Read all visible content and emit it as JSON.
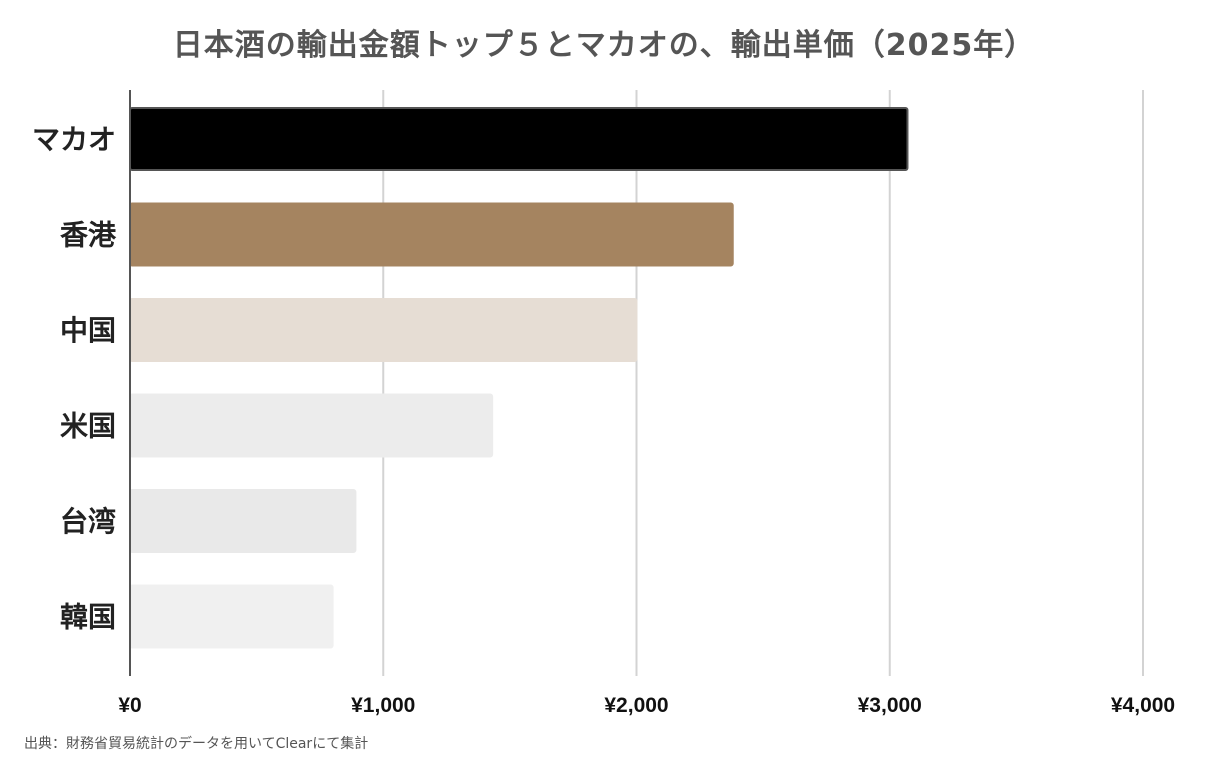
{
  "chart_data": {
    "type": "bar",
    "orientation": "horizontal",
    "title": "日本酒の輸出金額トップ５とマカオの、輸出単価（2025年）",
    "categories": [
      "マカオ",
      "香港",
      "中国",
      "米国",
      "台湾",
      "韓国"
    ],
    "values": [
      3070,
      2380,
      2000,
      1430,
      890,
      800
    ],
    "bar_colors": [
      "#000000",
      "#a58460",
      "#e6ddd4",
      "#ececec",
      "#e9e9e9",
      "#f0f0f0"
    ],
    "bar_stroke_colors": [
      "#555555",
      "#a58460",
      "#e6ddd4",
      "#ececec",
      "#e9e9e9",
      "#f0f0f0"
    ],
    "xlim": [
      0,
      4000
    ],
    "xticks": [
      0,
      1000,
      2000,
      3000,
      4000
    ],
    "xtick_labels": [
      "¥0",
      "¥1,000",
      "¥2,000",
      "¥3,000",
      "¥4,000"
    ],
    "xlabel": "",
    "ylabel": "",
    "grid": true,
    "grid_color": "#d3d3d3",
    "axis_color": "#555555"
  },
  "source_note": "出典：財務省貿易統計のデータを用いてClearにて集計"
}
